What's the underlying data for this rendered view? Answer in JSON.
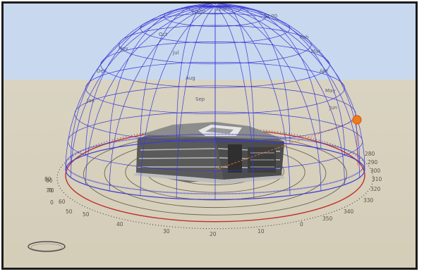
{
  "scene": {
    "type": "sun-path-diagram",
    "colors": {
      "sky": "#c8d8ee",
      "ground": "#d8d2bf",
      "dome_lines": "#3a3ad6",
      "compass_ring": "#c0302a",
      "sun": "#f07a1c",
      "building": "#4a4a4a"
    },
    "sun": {
      "azimuth_deg": 283,
      "visible": true
    },
    "dome_labels": [
      "10:00",
      "12:00",
      "14:00",
      "Jul",
      "Aug",
      "Sep",
      "Oct",
      "Nov",
      "Dec",
      "Jan",
      "Feb",
      "Mar",
      "Apr",
      "May",
      "Jun"
    ],
    "altitude_labels": [
      "0",
      "10",
      "20",
      "30",
      "40",
      "50",
      "60",
      "70",
      "80"
    ],
    "compass_labels": [
      "0",
      "10",
      "20",
      "30",
      "40",
      "50",
      "60",
      "70",
      "80",
      "280",
      "290",
      "300",
      "310",
      "320",
      "330",
      "340",
      "350"
    ]
  }
}
